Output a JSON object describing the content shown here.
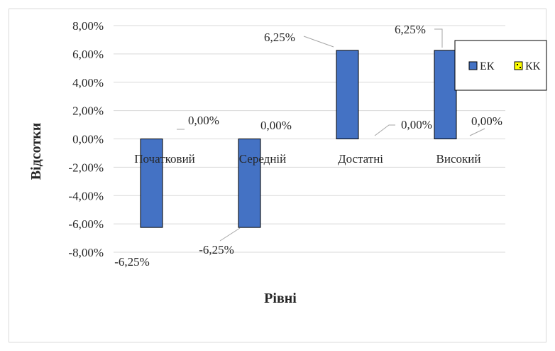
{
  "chart_data": {
    "type": "bar",
    "categories": [
      "Початковий",
      "Середній",
      "Достатні",
      "Високий"
    ],
    "series": [
      {
        "name": "ЕК",
        "values": [
          -6.25,
          -6.25,
          6.25,
          6.25
        ],
        "color": "#4472C4"
      },
      {
        "name": "КК",
        "values": [
          0.0,
          0.0,
          0.0,
          0.0
        ],
        "color": "#FFFF00"
      }
    ],
    "data_labels": {
      "ЕК": [
        "-6,25%",
        "-6,25%",
        "6,25%",
        "6,25%"
      ],
      "КК": [
        "0,00%",
        "0,00%",
        "0,00%",
        "0,00%"
      ]
    },
    "y_ticks": [
      8,
      6,
      4,
      2,
      0,
      -2,
      -4,
      -6,
      -8
    ],
    "y_tick_labels": [
      "8,00%",
      "6,00%",
      "4,00%",
      "2,00%",
      "0,00%",
      "-2,00%",
      "-4,00%",
      "-6,00%",
      "-8,00%"
    ],
    "ylim": [
      -8,
      8
    ],
    "title": "",
    "xlabel": "Рівні",
    "ylabel": "Відсотки",
    "grid": true,
    "legend_position": "right"
  }
}
